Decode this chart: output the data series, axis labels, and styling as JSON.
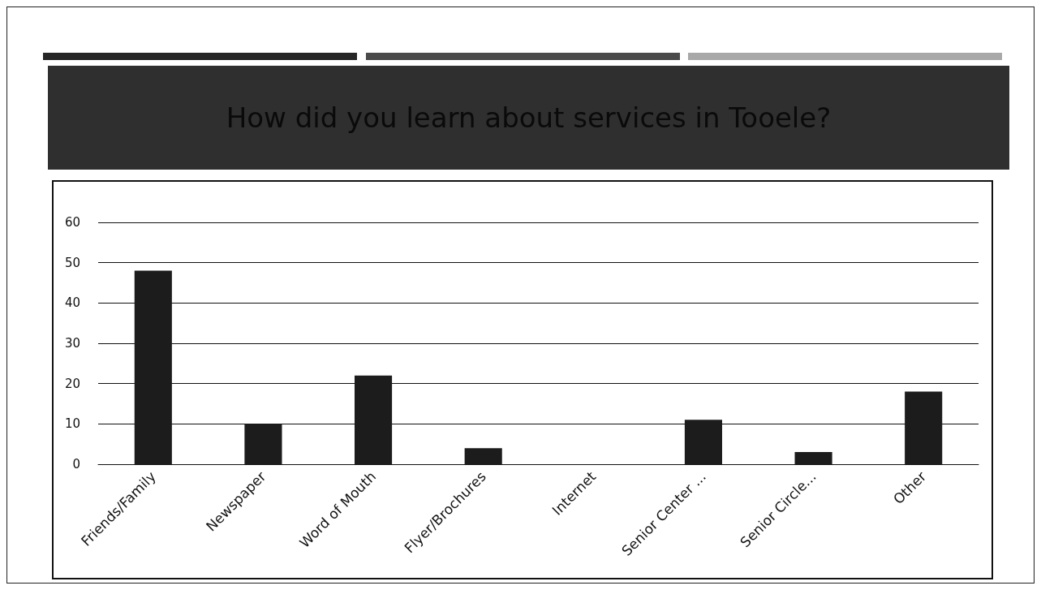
{
  "chart_data": {
    "type": "bar",
    "title": "How did you learn about services in Tooele?",
    "categories": [
      "Friends/Family",
      "Newspaper",
      "Word of Mouth",
      "Flyer/Brochures",
      "Internet",
      "Senior Center ...",
      "Senior Circle...",
      "Other"
    ],
    "values": [
      48,
      10,
      22,
      4,
      0,
      11,
      3,
      18
    ],
    "color": "#1c1c1c",
    "ylim": [
      0,
      60
    ],
    "yticks": [
      0,
      10,
      20,
      30,
      40,
      50,
      60
    ],
    "grid": "y"
  }
}
